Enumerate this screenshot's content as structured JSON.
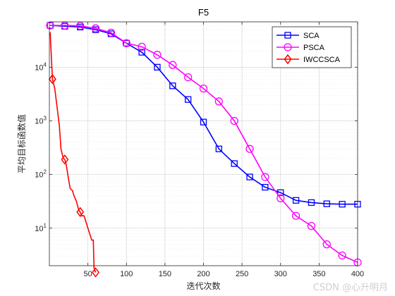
{
  "chart_data": {
    "type": "line",
    "title": "F5",
    "xlabel": "迭代次数",
    "ylabel": "平均目标函数值",
    "xlim": [
      0,
      400
    ],
    "ylim": [
      2,
      70000
    ],
    "yscale": "log",
    "grid": true,
    "legend_position": "top-right",
    "x_ticks": [
      50,
      100,
      150,
      200,
      250,
      300,
      350,
      400
    ],
    "x_tick_labels": [
      "50",
      "100",
      "150",
      "200",
      "250",
      "300",
      "350",
      "400"
    ],
    "y_ticks": [
      10,
      100,
      1000,
      10000
    ],
    "y_tick_labels": [
      "10^1",
      "10^2",
      "10^3",
      "10^4"
    ],
    "series": [
      {
        "name": "SCA",
        "color": "#0000ff",
        "marker": "square",
        "x": [
          1,
          20,
          40,
          60,
          80,
          100,
          120,
          140,
          160,
          180,
          200,
          220,
          240,
          260,
          280,
          300,
          320,
          340,
          360,
          380,
          400
        ],
        "y": [
          60000,
          58000,
          56000,
          50000,
          42000,
          28000,
          19000,
          10000,
          4500,
          2500,
          950,
          300,
          160,
          90,
          58,
          46,
          33,
          30,
          28.5,
          28,
          28
        ]
      },
      {
        "name": "PSCA",
        "color": "#ff00ff",
        "marker": "circle",
        "x": [
          1,
          20,
          40,
          60,
          80,
          100,
          120,
          140,
          160,
          180,
          200,
          220,
          240,
          260,
          280,
          300,
          320,
          340,
          360,
          380,
          400
        ],
        "y": [
          60000,
          60000,
          59000,
          53000,
          44000,
          28000,
          24000,
          17000,
          11000,
          6500,
          4000,
          2300,
          1000,
          300,
          90,
          36,
          17,
          11,
          5,
          3.1,
          2.3
        ]
      },
      {
        "name": "IWCCSCA",
        "color": "#ff0000",
        "marker": "diamond",
        "x": [
          1,
          4,
          7,
          10,
          13,
          15,
          18,
          20,
          22,
          25,
          27,
          30,
          32,
          35,
          38,
          40,
          42,
          45,
          50,
          55,
          57,
          58,
          60
        ],
        "y": [
          45000,
          6000,
          4000,
          1800,
          800,
          300,
          200,
          190,
          150,
          80,
          55,
          50,
          40,
          32,
          22,
          20,
          17,
          17,
          10,
          6,
          6,
          1.8,
          1.5
        ]
      }
    ]
  },
  "watermark": "CSDN @心升明月"
}
